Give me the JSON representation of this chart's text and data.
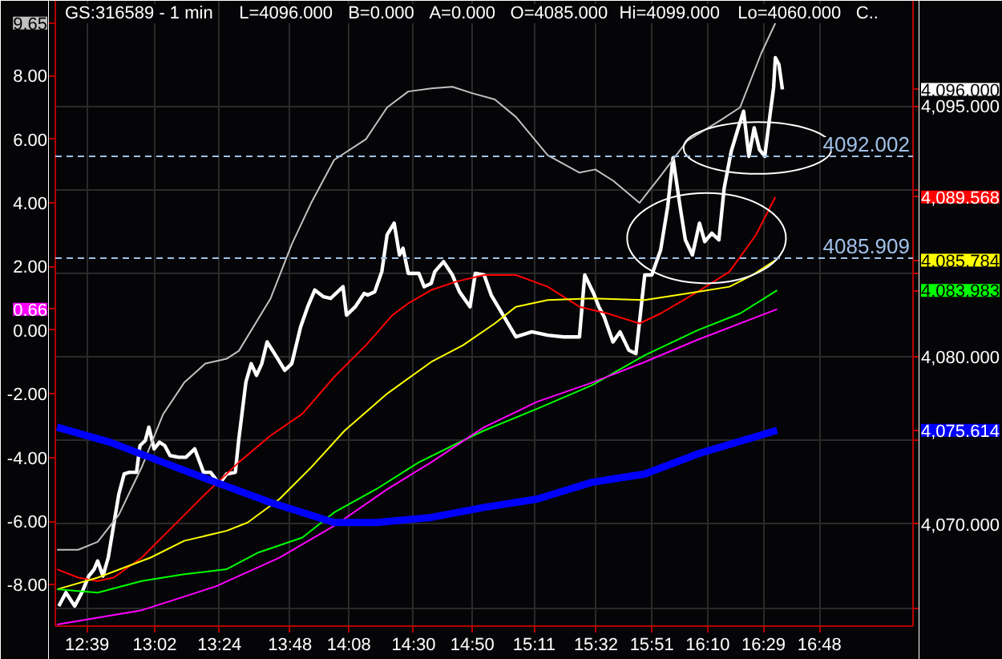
{
  "chart_data": {
    "type": "line",
    "title": "GS:316589 - 1 min",
    "annotations": [
      "L=4096.000",
      "B=0.000",
      "A=0.000",
      "O=4085.000",
      "Hi=4099.000",
      "Lo=4060.000",
      "C.."
    ],
    "xlim": [
      12.47,
      17.33
    ],
    "ylim": [
      -9.3,
      10.35
    ],
    "y2lim": [
      4063.9,
      4101.3
    ],
    "xticks": [
      {
        "value": 12.65,
        "label": "12:39"
      },
      {
        "value": 13.0333,
        "label": "13:02"
      },
      {
        "value": 13.4,
        "label": "13:24"
      },
      {
        "value": 13.8,
        "label": "13:48"
      },
      {
        "value": 14.1333,
        "label": "14:08"
      },
      {
        "value": 14.5,
        "label": "14:30"
      },
      {
        "value": 14.8333,
        "label": "14:50"
      },
      {
        "value": 15.1833,
        "label": "15:11"
      },
      {
        "value": 15.5333,
        "label": "15:32"
      },
      {
        "value": 15.85,
        "label": "15:51"
      },
      {
        "value": 16.1667,
        "label": "16:10"
      },
      {
        "value": 16.4833,
        "label": "16:29"
      },
      {
        "value": 16.8,
        "label": "16:48"
      }
    ],
    "yticks": [
      {
        "value": -8,
        "label": "-8.00"
      },
      {
        "value": -6,
        "label": "-6.00"
      },
      {
        "value": -4,
        "label": "-4.00"
      },
      {
        "value": -2,
        "label": "-2.00"
      },
      {
        "value": 0,
        "label": "0.00"
      },
      {
        "value": 0.66,
        "label": "0.66"
      },
      {
        "value": 2,
        "label": "2.00"
      },
      {
        "value": 4,
        "label": "4.00"
      },
      {
        "value": 6,
        "label": "6.00"
      },
      {
        "value": 8,
        "label": "8.00"
      },
      {
        "value": 9.65,
        "label": "9.65"
      }
    ],
    "y2ticks": [
      {
        "value": 4065,
        "label": null
      },
      {
        "value": 4070,
        "label": "4,070.000"
      },
      {
        "value": 4075,
        "label": null
      },
      {
        "value": 4075.614,
        "label": "4,075.614"
      },
      {
        "value": 4080,
        "label": "4,080.000"
      },
      {
        "value": 4083.983,
        "label": "4,083.983"
      },
      {
        "value": 4085,
        "label": null
      },
      {
        "value": 4085.784,
        "label": "4,085.784"
      },
      {
        "value": 4089.568,
        "label": "4,089.568"
      },
      {
        "value": 4090,
        "label": null
      },
      {
        "value": 4095,
        "label": "4,095.000"
      },
      {
        "value": 4096.0,
        "label": "4,096.000"
      }
    ],
    "grid": true,
    "ref_lines": [
      {
        "axis": "y2",
        "value": 4092.002,
        "label": "4092.002",
        "color": "#a0c0e8",
        "line_style": "dashed"
      },
      {
        "axis": "y2",
        "value": 4085.909,
        "label": "4085.909",
        "color": "#a0c0e8",
        "line_style": "dashed"
      }
    ],
    "series": [
      {
        "color": "#ffffff",
        "axis": "y2",
        "x": [
          12.49,
          12.53,
          12.58,
          12.62,
          12.66,
          12.69,
          12.71,
          12.74,
          12.77,
          12.8,
          12.83,
          12.86,
          12.89,
          12.93,
          12.95,
          12.98,
          13.0,
          13.03,
          13.06,
          13.09,
          13.12,
          13.17,
          13.21,
          13.26,
          13.31,
          13.35,
          13.4,
          13.44,
          13.49,
          13.51,
          13.55,
          13.58,
          13.61,
          13.64,
          13.67,
          13.7,
          13.73,
          13.77,
          13.81,
          13.86,
          13.9,
          13.94,
          13.99,
          14.03,
          14.1,
          14.12,
          14.17,
          14.22,
          14.24,
          14.28,
          14.32,
          14.35,
          14.39,
          14.42,
          14.44,
          14.47,
          14.53,
          14.56,
          14.6,
          14.62,
          14.67,
          14.72,
          14.76,
          14.82,
          14.85,
          14.9,
          14.94,
          15.08,
          15.17,
          15.26,
          15.35,
          15.44,
          15.47,
          15.52,
          15.55,
          15.58,
          15.63,
          15.67,
          15.72,
          15.76,
          15.81,
          15.85,
          15.9,
          15.94,
          15.97,
          16.01,
          16.04,
          16.08,
          16.12,
          16.15,
          16.19,
          16.23,
          16.26,
          16.3,
          16.34,
          16.37,
          16.4,
          16.43,
          16.46,
          16.49,
          16.52,
          16.54,
          16.55,
          16.57,
          16.59
        ],
        "values": [
          4065.1,
          4065.9,
          4065.1,
          4065.9,
          4066.9,
          4067.3,
          4067.8,
          4066.9,
          4068.0,
          4069.9,
          4071.8,
          4073.0,
          4073.1,
          4073.1,
          4074.7,
          4075.0,
          4075.8,
          4074.5,
          4074.9,
          4074.7,
          4074.1,
          4074.0,
          4074.0,
          4074.5,
          4073.1,
          4073.1,
          4072.4,
          4073.0,
          4073.1,
          4075.1,
          4078.5,
          4079.6,
          4078.9,
          4079.6,
          4080.9,
          4080.4,
          4079.9,
          4079.2,
          4079.6,
          4081.8,
          4083.0,
          4084.0,
          4083.6,
          4083.5,
          4084.2,
          4082.5,
          4083.0,
          4083.8,
          4083.7,
          4083.9,
          4085.1,
          4087.3,
          4088.0,
          4086.1,
          4086.5,
          4085.0,
          4085.0,
          4084.2,
          4084.4,
          4085.1,
          4085.7,
          4084.9,
          4083.9,
          4083.0,
          4085.0,
          4084.9,
          4083.7,
          4081.2,
          4081.5,
          4081.3,
          4081.2,
          4081.2,
          4084.9,
          4083.8,
          4083.0,
          4082.4,
          4080.9,
          4081.5,
          4080.4,
          4080.2,
          4084.9,
          4084.9,
          4086.4,
          4089.0,
          4091.9,
          4089.0,
          4087.0,
          4086.1,
          4088.0,
          4086.9,
          4087.4,
          4087.0,
          4090.1,
          4092.3,
          4093.7,
          4094.7,
          4092.0,
          4093.7,
          4092.4,
          4092.0,
          4094.5,
          4096.1,
          4097.9,
          4097.5,
          4096.0
        ]
      },
      {
        "color": "#c0c0c0",
        "axis": "y",
        "x": [
          12.48,
          12.6,
          12.71,
          12.83,
          12.96,
          13.08,
          13.2,
          13.32,
          13.44,
          13.51,
          13.69,
          13.81,
          13.92,
          14.05,
          14.23,
          14.35,
          14.47,
          14.6,
          14.72,
          14.83,
          14.96,
          15.08,
          15.26,
          15.44,
          15.53,
          15.63,
          15.78,
          15.9,
          16.05,
          16.24,
          16.35,
          16.47,
          16.55
        ],
        "values": [
          -6.9,
          -6.9,
          -6.65,
          -5.8,
          -4.3,
          -2.65,
          -1.65,
          -1.05,
          -0.9,
          -0.65,
          1.0,
          2.7,
          4.0,
          5.35,
          6.0,
          7.0,
          7.5,
          7.6,
          7.65,
          7.45,
          7.25,
          6.7,
          5.5,
          4.95,
          5.05,
          4.7,
          4.0,
          4.85,
          5.95,
          6.6,
          7.0,
          8.7,
          9.65
        ]
      },
      {
        "color": "#ff0000",
        "axis": "y2",
        "x": [
          12.48,
          12.6,
          12.71,
          12.8,
          12.96,
          13.14,
          13.32,
          13.51,
          13.69,
          13.87,
          14.05,
          14.23,
          14.38,
          14.47,
          14.6,
          14.74,
          14.9,
          15.08,
          15.26,
          15.44,
          15.6,
          15.78,
          15.9,
          16.11,
          16.29,
          16.44,
          16.55
        ],
        "values": [
          4067.3,
          4066.8,
          4066.6,
          4066.8,
          4068.0,
          4069.9,
          4071.8,
          4073.7,
          4075.3,
          4076.6,
          4078.8,
          4080.7,
          4082.5,
          4083.2,
          4084.0,
          4084.5,
          4084.9,
          4084.9,
          4084.2,
          4083.0,
          4082.6,
          4082.0,
          4082.6,
          4083.9,
          4085.1,
          4087.3,
          4089.568
        ]
      },
      {
        "color": "#ffff00",
        "axis": "y2",
        "x": [
          12.48,
          12.71,
          13.01,
          13.2,
          13.44,
          13.56,
          13.74,
          13.92,
          14.11,
          14.35,
          14.6,
          14.78,
          14.96,
          15.08,
          15.26,
          15.51,
          15.81,
          16.11,
          16.29,
          16.42,
          16.55
        ],
        "values": [
          4066.1,
          4066.8,
          4068.0,
          4069.0,
          4069.6,
          4070.1,
          4071.5,
          4073.4,
          4075.6,
          4077.8,
          4079.7,
          4080.7,
          4082.0,
          4083.0,
          4083.4,
          4083.5,
          4083.4,
          4083.9,
          4084.2,
          4084.9,
          4085.784
        ]
      },
      {
        "color": "#00ff00",
        "axis": "y2",
        "x": [
          12.48,
          12.71,
          12.96,
          13.2,
          13.44,
          13.62,
          13.87,
          14.05,
          14.29,
          14.53,
          14.78,
          14.9,
          15.2,
          15.51,
          15.81,
          16.11,
          16.35,
          16.56
        ],
        "values": [
          4066.1,
          4065.9,
          4066.6,
          4067.0,
          4067.3,
          4068.3,
          4069.2,
          4070.7,
          4072.1,
          4073.7,
          4075.0,
          4075.6,
          4076.9,
          4078.3,
          4080.1,
          4081.6,
          4082.6,
          4083.983
        ]
      },
      {
        "color": "#ff00ff",
        "axis": "y",
        "x": [
          12.48,
          12.96,
          13.38,
          13.74,
          14.05,
          14.35,
          14.6,
          14.83,
          14.9,
          15.2,
          15.51,
          15.81,
          16.11,
          16.56
        ],
        "values": [
          -9.25,
          -8.8,
          -8.05,
          -7.15,
          -6.15,
          -5.0,
          -4.15,
          -3.3,
          -3.05,
          -2.25,
          -1.65,
          -1.0,
          -0.3,
          0.66
        ]
      },
      {
        "color": "#0000ff",
        "axis": "y2",
        "x": [
          12.48,
          12.78,
          13.08,
          13.38,
          13.69,
          14.05,
          14.29,
          14.6,
          14.9,
          15.2,
          15.51,
          15.81,
          16.11,
          16.56
        ],
        "values": [
          4075.8,
          4074.9,
          4073.7,
          4072.5,
          4071.3,
          4070.1,
          4070.1,
          4070.4,
          4071.0,
          4071.5,
          4072.5,
          4073.0,
          4074.2,
          4075.614
        ]
      }
    ]
  }
}
